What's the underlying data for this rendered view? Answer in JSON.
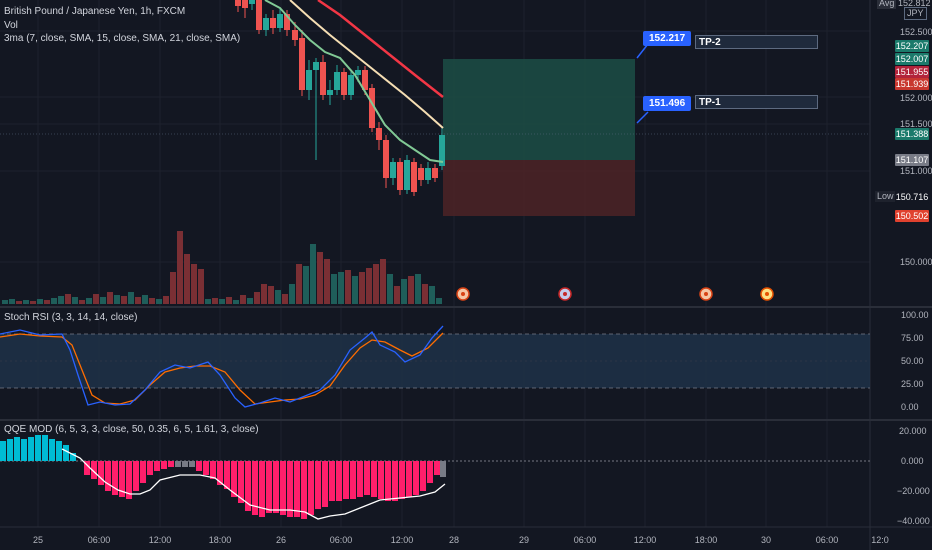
{
  "header": {
    "symbol": "British Pound / Japanese Yen, 1h, FXCM",
    "volume_label": "Vol",
    "ma_label": "3ma (7, close, SMA, 15, close, SMA, 21, close, SMA)",
    "top_right": [
      "Avg",
      "152.812",
      "JPY"
    ]
  },
  "colors": {
    "bull": "#26a69a",
    "bear": "#ef5350",
    "ma_fast": "#81c995",
    "ma_mid": "#f5deb3",
    "ma_slow": "#f23645",
    "stoch_k": "#2962ff",
    "stoch_d": "#ff6d00",
    "qqe_pos": "#00bcd4",
    "qqe_neg": "#ff1f6b",
    "qqe_neutral": "#787b86",
    "target_zone": "#1c4d45",
    "stop_zone": "#4a2226"
  },
  "price_axis": {
    "labels": [
      "152.500",
      "152.000",
      "151.500",
      "151.000",
      "150.000"
    ],
    "tags": [
      {
        "text": "152.207",
        "color": "#1b7a6b"
      },
      {
        "text": "152.007",
        "color": "#1b7a6b"
      },
      {
        "text": "151.955",
        "color": "#b2243b"
      },
      {
        "text": "151.939",
        "color": "#c8372f"
      },
      {
        "text": "151.388",
        "color": "#1b7a6b"
      },
      {
        "text": "151.107",
        "color": "#787b86"
      },
      {
        "text": "150.716",
        "color": "#131722"
      },
      {
        "text": "150.502",
        "color": "#e0412e"
      }
    ],
    "low_label": "Low"
  },
  "callouts": [
    {
      "value": "152.217",
      "target": "TP-2"
    },
    {
      "value": "151.496",
      "target": "TP-1"
    }
  ],
  "stoch": {
    "label": "Stoch RSI (3, 3, 14, 14, close)",
    "axis": [
      "100.00",
      "75.00",
      "50.00",
      "25.00",
      "0.00"
    ]
  },
  "qqe": {
    "label": "QQE MOD (6, 5, 3, 3, close, 50, 0.35, 6, 5, 1.61, 3, close)",
    "axis": [
      "20.000",
      "0.000",
      "−20.000",
      "−40.000"
    ]
  },
  "time_axis": [
    "25",
    "06:00",
    "12:00",
    "18:00",
    "26",
    "06:00",
    "12:00",
    "28",
    "29",
    "06:00",
    "12:00",
    "18:00",
    "30",
    "06:00",
    "12:0"
  ]
}
